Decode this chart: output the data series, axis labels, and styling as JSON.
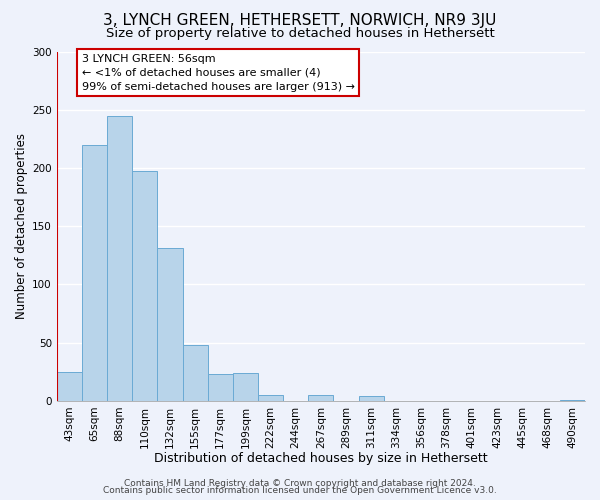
{
  "title": "3, LYNCH GREEN, HETHERSETT, NORWICH, NR9 3JU",
  "subtitle": "Size of property relative to detached houses in Hethersett",
  "xlabel": "Distribution of detached houses by size in Hethersett",
  "ylabel": "Number of detached properties",
  "categories": [
    "43sqm",
    "65sqm",
    "88sqm",
    "110sqm",
    "132sqm",
    "155sqm",
    "177sqm",
    "199sqm",
    "222sqm",
    "244sqm",
    "267sqm",
    "289sqm",
    "311sqm",
    "334sqm",
    "356sqm",
    "378sqm",
    "401sqm",
    "423sqm",
    "445sqm",
    "468sqm",
    "490sqm"
  ],
  "values": [
    25,
    220,
    245,
    197,
    131,
    48,
    23,
    24,
    5,
    0,
    5,
    0,
    4,
    0,
    0,
    0,
    0,
    0,
    0,
    0,
    1
  ],
  "bar_color": "#b8d4ea",
  "bar_edge_color": "#6aaad4",
  "marker_color": "#cc0000",
  "ylim": [
    0,
    300
  ],
  "yticks": [
    0,
    50,
    100,
    150,
    200,
    250,
    300
  ],
  "annotation_title": "3 LYNCH GREEN: 56sqm",
  "annotation_line1": "← <1% of detached houses are smaller (4)",
  "annotation_line2": "99% of semi-detached houses are larger (913) →",
  "annotation_box_color": "#ffffff",
  "annotation_box_edge_color": "#cc0000",
  "footer_line1": "Contains HM Land Registry data © Crown copyright and database right 2024.",
  "footer_line2": "Contains public sector information licensed under the Open Government Licence v3.0.",
  "background_color": "#eef2fb",
  "grid_color": "#ffffff",
  "title_fontsize": 11,
  "subtitle_fontsize": 9.5,
  "xlabel_fontsize": 9,
  "ylabel_fontsize": 8.5,
  "tick_fontsize": 7.5,
  "footer_fontsize": 6.5
}
